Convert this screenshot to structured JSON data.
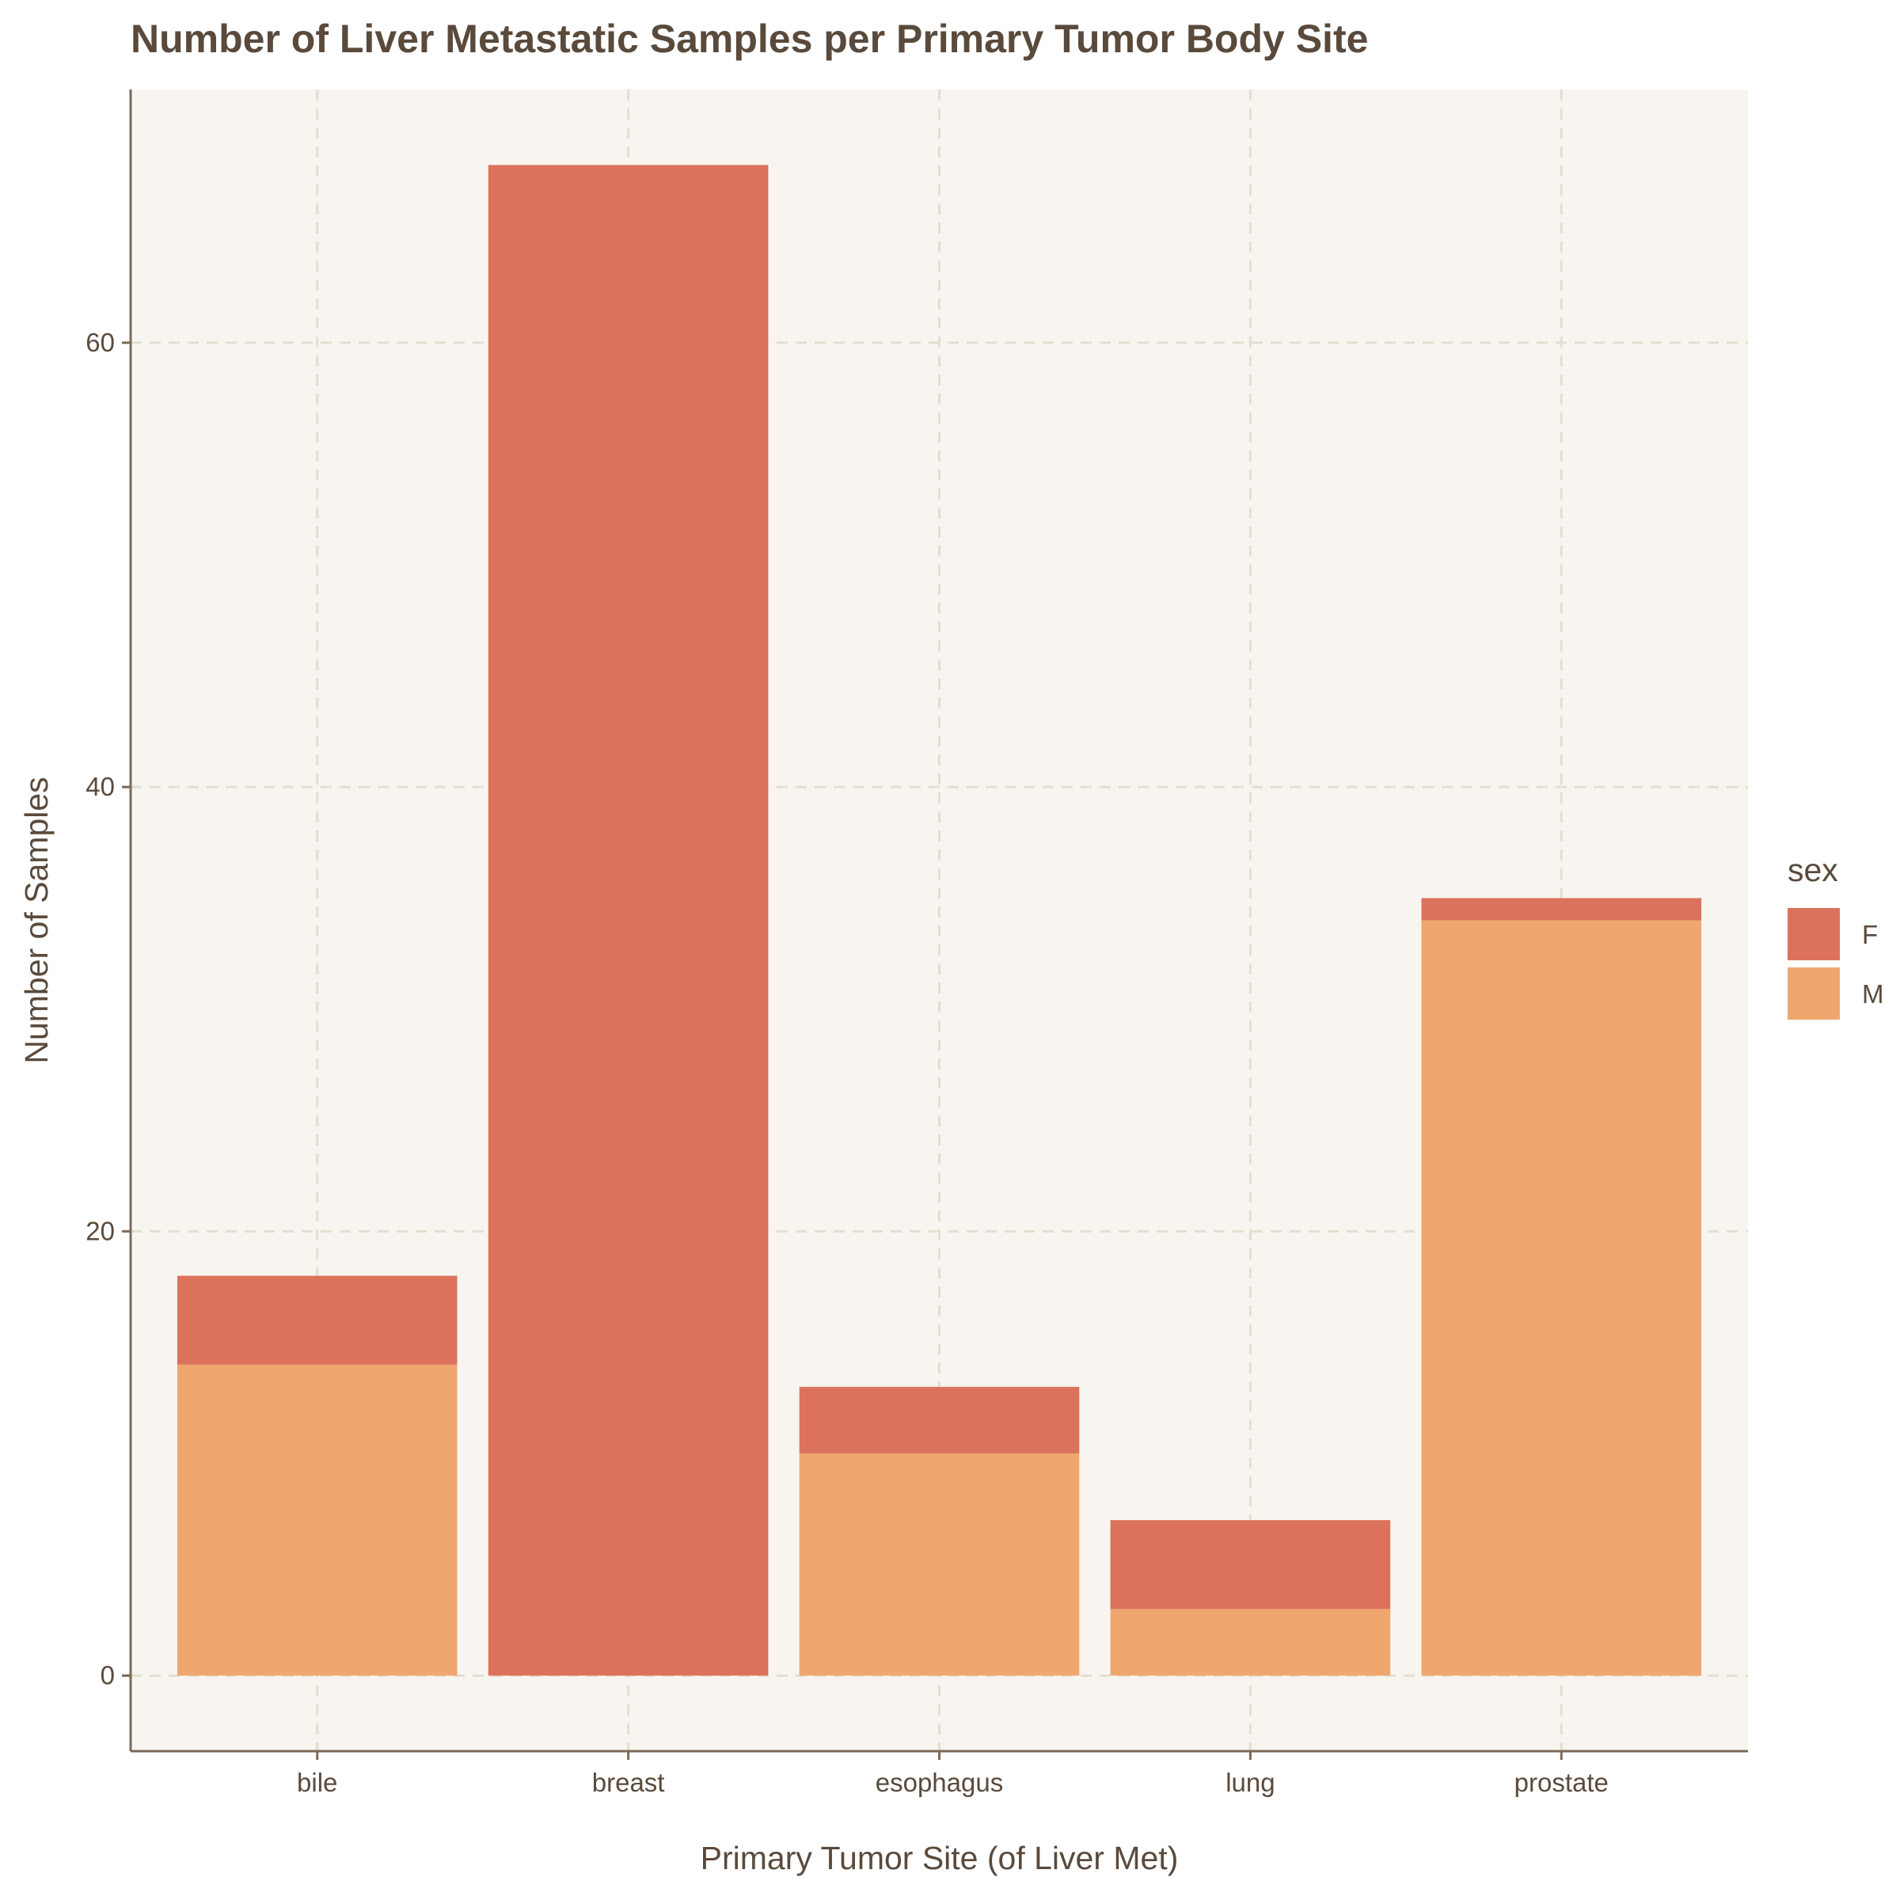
{
  "chart_data": {
    "type": "bar",
    "stacked": true,
    "title": "Number of Liver Metastatic Samples per Primary Tumor Body Site",
    "xlabel": "Primary Tumor Site (of Liver Met)",
    "ylabel": "Number of Samples",
    "categories": [
      "bile",
      "breast",
      "esophagus",
      "lung",
      "prostate"
    ],
    "series": [
      {
        "name": "F",
        "color": "#dc725c",
        "values": [
          4,
          68,
          3,
          4,
          1
        ]
      },
      {
        "name": "M",
        "color": "#efa76f",
        "values": [
          14,
          0,
          10,
          3,
          34
        ]
      }
    ],
    "stack_order_bottom_to_top": [
      "M",
      "F"
    ],
    "ylim": [
      -3.4,
      71.4
    ],
    "yticks": [
      0,
      20,
      40,
      60
    ],
    "grid": true,
    "legend": {
      "title": "sex",
      "position": "right"
    },
    "panel_background": "#f8f5f0",
    "grid_color": "#e3dfd0"
  }
}
